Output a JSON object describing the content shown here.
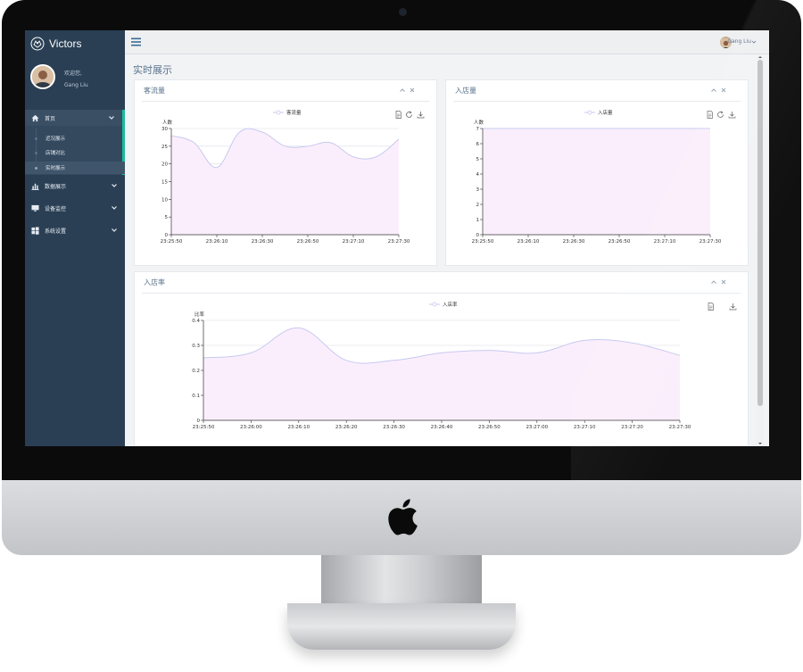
{
  "app": {
    "brand": "Victors",
    "welcome": "欢迎您,",
    "user_name": "Gang Liu",
    "page_title": "实时展示"
  },
  "sidebar": {
    "items": [
      {
        "label": "首页",
        "icon": "home-icon",
        "expanded": true
      },
      {
        "label": "数据展示",
        "icon": "bar-chart-icon"
      },
      {
        "label": "设备监控",
        "icon": "monitor-icon"
      },
      {
        "label": "系统设置",
        "icon": "windows-icon"
      }
    ],
    "sub_items": [
      {
        "label": "近况展示"
      },
      {
        "label": "店铺对比"
      },
      {
        "label": "实时展示",
        "active": true
      }
    ]
  },
  "topbar": {
    "user_name": "Gang Liu"
  },
  "colors": {
    "sidebar_bg": "#2a3f54",
    "accent": "#1abb9c",
    "series_fill": "#fbeefc",
    "series_line": "#c7c9ef"
  },
  "panels": {
    "customer_flow": {
      "title": "客流量"
    },
    "store_entries": {
      "title": "入店量"
    },
    "entry_rate": {
      "title": "入店率"
    }
  },
  "chart_data": [
    {
      "type": "area",
      "legend": "客流量",
      "ylabel": "人数",
      "ylim": [
        0,
        30
      ],
      "yticks": [
        0,
        5,
        10,
        15,
        20,
        25,
        30
      ],
      "x": [
        "23:25:50",
        "23:26:00",
        "23:26:10",
        "23:26:20",
        "23:26:30",
        "23:26:40",
        "23:26:50",
        "23:27:00",
        "23:27:10",
        "23:27:20",
        "23:27:30"
      ],
      "xticks": [
        "23:25:50",
        "23:26:10",
        "23:26:30",
        "23:26:50",
        "23:27:10",
        "23:27:30"
      ],
      "values": [
        28,
        26,
        19,
        29,
        29,
        25,
        25,
        26,
        22,
        22,
        27
      ]
    },
    {
      "type": "area",
      "legend": "入店量",
      "ylabel": "人数",
      "ylim": [
        0,
        7
      ],
      "yticks": [
        0,
        1,
        2,
        3,
        4,
        5,
        6,
        7
      ],
      "x": [
        "23:25:50",
        "23:26:00",
        "23:26:10",
        "23:26:20",
        "23:26:30",
        "23:26:40",
        "23:26:50",
        "23:27:00",
        "23:27:10",
        "23:27:20",
        "23:27:30"
      ],
      "xticks": [
        "23:25:50",
        "23:26:10",
        "23:26:30",
        "23:26:50",
        "23:27:10",
        "23:27:30"
      ],
      "values": [
        7,
        7,
        7,
        7,
        7,
        7,
        7,
        7,
        7,
        7,
        7
      ]
    },
    {
      "type": "area",
      "legend": "入店率",
      "ylabel": "比率",
      "ylim": [
        0,
        0.4
      ],
      "yticks": [
        0,
        0.1,
        0.2,
        0.3,
        0.4
      ],
      "x": [
        "23:25:50",
        "23:26:00",
        "23:26:10",
        "23:26:20",
        "23:26:30",
        "23:26:40",
        "23:26:50",
        "23:27:00",
        "23:27:10",
        "23:27:20",
        "23:27:30"
      ],
      "xticks": [
        "23:25:50",
        "23:26:00",
        "23:26:10",
        "23:26:20",
        "23:26:30",
        "23:26:40",
        "23:26:50",
        "23:27:00",
        "23:27:10",
        "23:27:20",
        "23:27:30"
      ],
      "values": [
        0.25,
        0.27,
        0.37,
        0.24,
        0.24,
        0.27,
        0.28,
        0.27,
        0.32,
        0.31,
        0.26
      ]
    }
  ]
}
